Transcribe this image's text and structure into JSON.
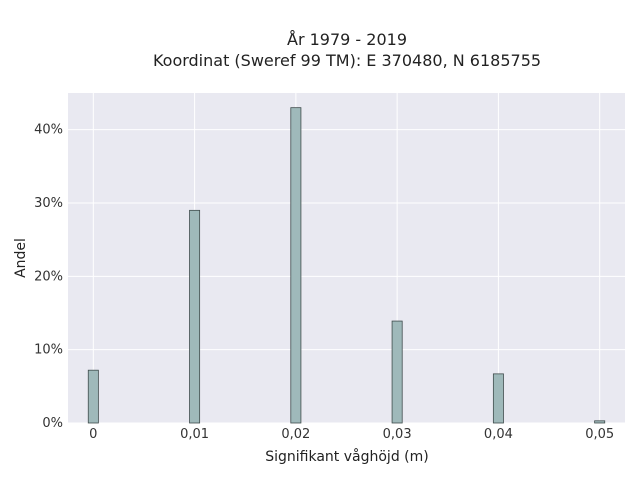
{
  "chart_data": {
    "type": "bar",
    "title_lines": [
      "År 1979 - 2019",
      "Koordinat (Sweref 99 TM): E 370480, N 6185755"
    ],
    "xlabel": "Signifikant våghöjd (m)",
    "ylabel": "Andel",
    "x": [
      0,
      0.01,
      0.02,
      0.03,
      0.04,
      0.05
    ],
    "values": [
      0.072,
      0.29,
      0.43,
      0.139,
      0.067,
      0.003
    ],
    "x_ticks": [
      "0",
      "0,01",
      "0,02",
      "0,03",
      "0,04",
      "0,05"
    ],
    "y_ticks": [
      "0%",
      "10%",
      "20%",
      "30%",
      "40%"
    ],
    "xlim": [
      -0.0025,
      0.0525
    ],
    "ylim": [
      0,
      0.45
    ],
    "grid": true,
    "colors": {
      "bar_fill": "#9fb9ba",
      "bar_stroke": "#3f4c4c",
      "plot_bg": "#e9e9f1",
      "grid": "#ffffff"
    }
  }
}
